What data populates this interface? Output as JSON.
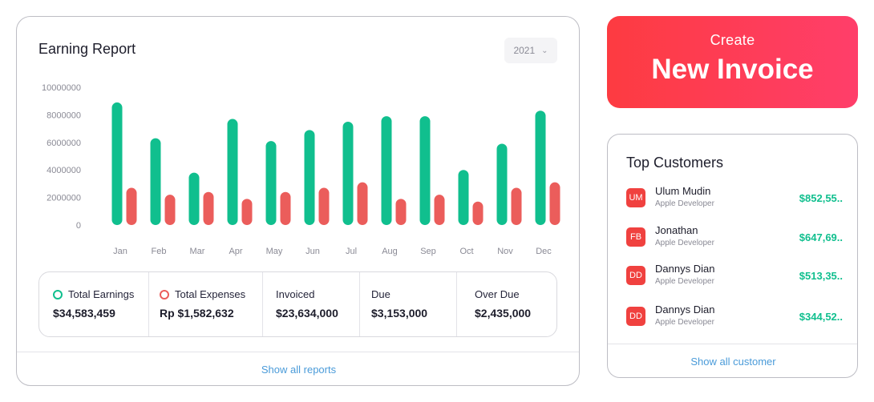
{
  "report": {
    "title": "Earning Report",
    "year": "2021",
    "show_all": "Show all reports"
  },
  "chart_data": {
    "type": "bar",
    "categories": [
      "Jan",
      "Feb",
      "Mar",
      "Apr",
      "May",
      "Jun",
      "Jul",
      "Aug",
      "Sep",
      "Oct",
      "Nov",
      "Dec"
    ],
    "series": [
      {
        "values": [
          8900000,
          6300000,
          3800000,
          7700000,
          6100000,
          6900000,
          7500000,
          7900000,
          7900000,
          4000000,
          5900000,
          8300000
        ]
      },
      {
        "values": [
          2700000,
          2200000,
          2400000,
          1900000,
          2400000,
          2700000,
          3100000,
          1900000,
          2200000,
          1700000,
          2700000,
          3100000
        ]
      }
    ],
    "y_ticks": [
      "10000000",
      "8000000",
      "6000000",
      "4000000",
      "2000000",
      "0"
    ],
    "ylim": [
      0,
      10000000
    ],
    "colors": [
      "#10bf8e",
      "#eb5d5b"
    ],
    "grid": false
  },
  "summary": {
    "earnings_label": "Total Earnings",
    "earnings_value": "$34,583,459",
    "expenses_label": "Total Expenses",
    "expenses_value": "Rp $1,582,632",
    "invoiced_label": "Invoiced",
    "invoiced_value": "$23,634,000",
    "due_label": "Due",
    "due_value": "$3,153,000",
    "overdue_label": "Over Due",
    "overdue_value": "$2,435,000"
  },
  "invoice": {
    "small": "Create",
    "big": "New Invoice"
  },
  "customers": {
    "title": "Top Customers",
    "items": [
      {
        "initials": "UM",
        "name": "Ulum Mudin",
        "role": "Apple Developer",
        "amount": "$852,55.."
      },
      {
        "initials": "FB",
        "name": "Jonathan",
        "role": "Apple Developer",
        "amount": "$647,69.."
      },
      {
        "initials": "DD",
        "name": "Dannys Dian",
        "role": "Apple Developer",
        "amount": "$513,35.."
      },
      {
        "initials": "DD",
        "name": "Dannys Dian",
        "role": "Apple Developer",
        "amount": "$344,52.."
      }
    ],
    "show_all": "Show all customer"
  }
}
